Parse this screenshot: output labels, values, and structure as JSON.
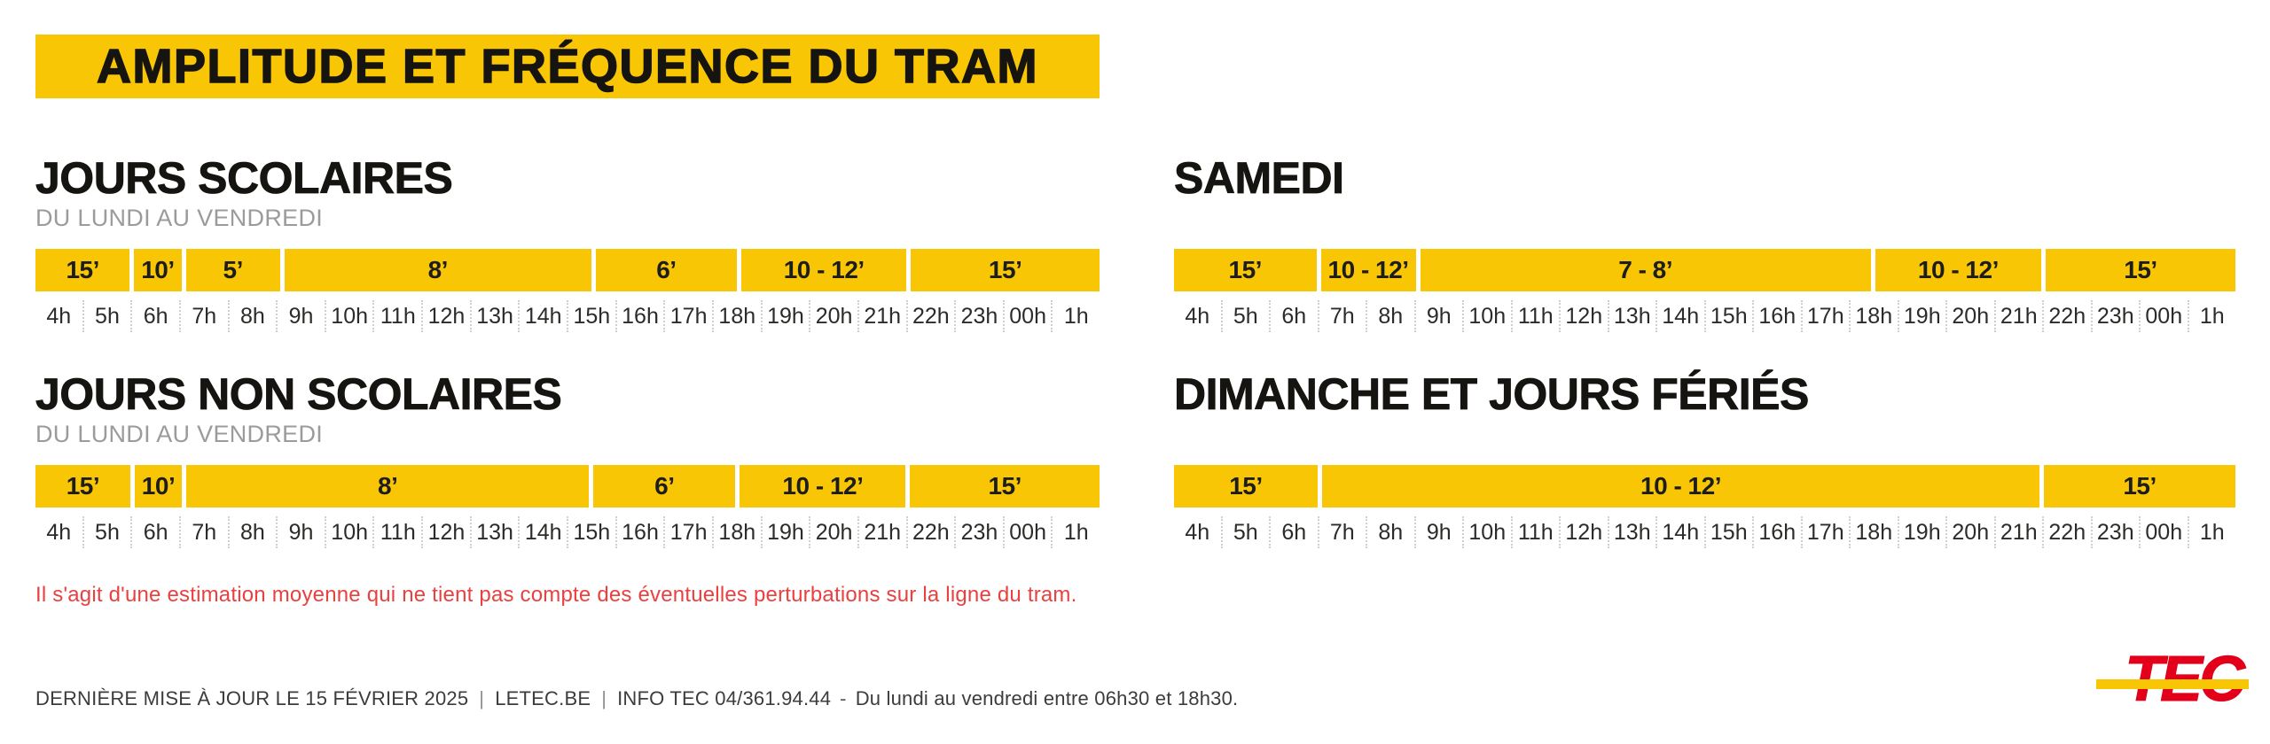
{
  "title": "AMPLITUDE ET FRÉQUENCE DU TRAM",
  "colors": {
    "yellow": "#F9C606",
    "logo_red": "#E2001A",
    "note_red": "#E94040",
    "subtitle_gray": "#9b9b9b"
  },
  "hour_labels": [
    "4h",
    "5h",
    "6h",
    "7h",
    "8h",
    "9h",
    "10h",
    "11h",
    "12h",
    "13h",
    "14h",
    "15h",
    "16h",
    "17h",
    "18h",
    "19h",
    "20h",
    "21h",
    "22h",
    "23h",
    "00h",
    "1h"
  ],
  "sections": [
    {
      "id": "jours-scolaires",
      "title": "JOURS SCOLAIRES",
      "subtitle": "DU LUNDI AU VENDREDI",
      "segments": [
        {
          "frequency": "15’",
          "from": "4h",
          "to": "6h",
          "hours": 2
        },
        {
          "frequency": "10’",
          "from": "6h",
          "to": "7h",
          "hours": 1
        },
        {
          "frequency": "5’",
          "from": "7h",
          "to": "9h",
          "hours": 2
        },
        {
          "frequency": "8’",
          "from": "9h",
          "to": "15h30",
          "hours": 6.5
        },
        {
          "frequency": "6’",
          "from": "15h30",
          "to": "18h30",
          "hours": 3
        },
        {
          "frequency": "10 - 12’",
          "from": "18h30",
          "to": "22h",
          "hours": 3.5
        },
        {
          "frequency": "15’",
          "from": "22h",
          "to": "1h",
          "hours": 4
        }
      ]
    },
    {
      "id": "samedi",
      "title": "SAMEDI",
      "subtitle": "",
      "segments": [
        {
          "frequency": "15’",
          "from": "4h",
          "to": "7h",
          "hours": 3
        },
        {
          "frequency": "10 - 12’",
          "from": "7h",
          "to": "9h",
          "hours": 2
        },
        {
          "frequency": "7 - 8’",
          "from": "9h",
          "to": "18h30",
          "hours": 9.5
        },
        {
          "frequency": "10 - 12’",
          "from": "18h30",
          "to": "22h",
          "hours": 3.5
        },
        {
          "frequency": "15’",
          "from": "22h",
          "to": "1h",
          "hours": 4
        }
      ]
    },
    {
      "id": "jours-non-scolaires",
      "title": "JOURS NON SCOLAIRES",
      "subtitle": "DU LUNDI AU VENDREDI",
      "segments": [
        {
          "frequency": "15’",
          "from": "4h",
          "to": "6h",
          "hours": 2
        },
        {
          "frequency": "10’",
          "from": "6h",
          "to": "7h",
          "hours": 1
        },
        {
          "frequency": "8’",
          "from": "7h",
          "to": "15h30",
          "hours": 8.5
        },
        {
          "frequency": "6’",
          "from": "15h30",
          "to": "18h30",
          "hours": 3
        },
        {
          "frequency": "10 - 12’",
          "from": "18h30",
          "to": "22h",
          "hours": 3.5
        },
        {
          "frequency": "15’",
          "from": "22h",
          "to": "1h",
          "hours": 4
        }
      ]
    },
    {
      "id": "dimanche-et-jours-feries",
      "title": "DIMANCHE ET JOURS FÉRIÉS",
      "subtitle": "",
      "segments": [
        {
          "frequency": "15’",
          "from": "4h",
          "to": "7h",
          "hours": 3
        },
        {
          "frequency": "10 - 12’",
          "from": "7h",
          "to": "22h",
          "hours": 15
        },
        {
          "frequency": "15’",
          "from": "22h",
          "to": "1h",
          "hours": 4
        }
      ]
    }
  ],
  "note": "Il s'agit d'une estimation moyenne qui ne tient pas compte des éventuelles perturbations sur la ligne du tram.",
  "footer": {
    "update": "DERNIÈRE MISE À JOUR LE 15 FÉVRIER 2025",
    "separator_pipe": "|",
    "separator_dash": "-",
    "website": "LETEC.BE",
    "info": "INFO TEC 04/361.94.44",
    "hours": "Du lundi au vendredi entre 06h30 et 18h30."
  },
  "logo": {
    "text": "TEC"
  }
}
